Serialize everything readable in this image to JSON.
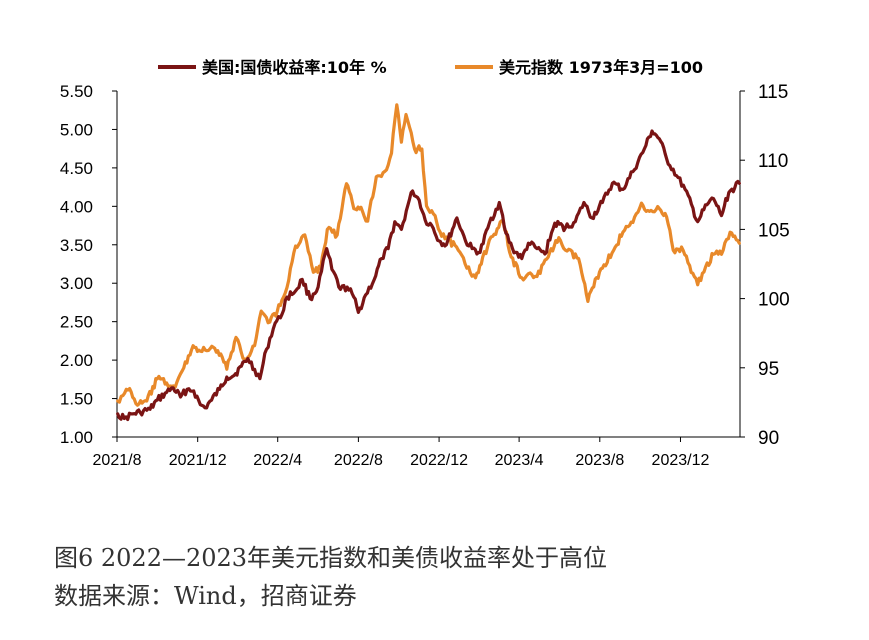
{
  "caption": {
    "figure_title": "图6   2022—2023年美元指数和美债收益率处于高位",
    "source": "数据来源：Wind，招商证券"
  },
  "chart_data": {
    "type": "line",
    "x_range": [
      "2021-08-01",
      "2024-02-29"
    ],
    "x_ticks": [
      {
        "date": "2021-08-01",
        "label": "2021/8"
      },
      {
        "date": "2021-12-01",
        "label": "2021/12"
      },
      {
        "date": "2022-04-01",
        "label": "2022/4"
      },
      {
        "date": "2022-08-01",
        "label": "2022/8"
      },
      {
        "date": "2022-12-01",
        "label": "2022/12"
      },
      {
        "date": "2023-04-01",
        "label": "2023/4"
      },
      {
        "date": "2023-08-01",
        "label": "2023/8"
      },
      {
        "date": "2023-12-01",
        "label": "2023/12"
      }
    ],
    "y_left": {
      "min": 1.0,
      "max": 5.5,
      "ticks": [
        "1.00",
        "1.50",
        "2.00",
        "2.50",
        "3.00",
        "3.50",
        "4.00",
        "4.50",
        "5.00",
        "5.50"
      ]
    },
    "y_right": {
      "min": 90,
      "max": 115,
      "ticks": [
        "90",
        "95",
        "100",
        "105",
        "110",
        "115"
      ]
    },
    "legend_position": "top",
    "grid": false,
    "series": [
      {
        "name": "美国:国债收益率:10年 %",
        "axis": "left",
        "color": "#7a1414",
        "points": [
          [
            "2021-08-02",
            1.3
          ],
          [
            "2021-08-12",
            1.24
          ],
          [
            "2021-08-25",
            1.3
          ],
          [
            "2021-09-05",
            1.32
          ],
          [
            "2021-09-20",
            1.36
          ],
          [
            "2021-10-01",
            1.48
          ],
          [
            "2021-10-15",
            1.58
          ],
          [
            "2021-10-25",
            1.64
          ],
          [
            "2021-11-05",
            1.52
          ],
          [
            "2021-11-15",
            1.62
          ],
          [
            "2021-11-25",
            1.6
          ],
          [
            "2021-12-05",
            1.42
          ],
          [
            "2021-12-12",
            1.38
          ],
          [
            "2021-12-22",
            1.48
          ],
          [
            "2022-01-03",
            1.62
          ],
          [
            "2022-01-14",
            1.78
          ],
          [
            "2022-01-25",
            1.8
          ],
          [
            "2022-02-05",
            1.92
          ],
          [
            "2022-02-15",
            2.02
          ],
          [
            "2022-02-25",
            1.88
          ],
          [
            "2022-03-05",
            1.76
          ],
          [
            "2022-03-15",
            2.14
          ],
          [
            "2022-03-28",
            2.48
          ],
          [
            "2022-04-05",
            2.55
          ],
          [
            "2022-04-15",
            2.82
          ],
          [
            "2022-04-28",
            2.9
          ],
          [
            "2022-05-08",
            3.05
          ],
          [
            "2022-05-20",
            2.8
          ],
          [
            "2022-06-01",
            2.95
          ],
          [
            "2022-06-14",
            3.45
          ],
          [
            "2022-06-22",
            3.18
          ],
          [
            "2022-07-05",
            2.92
          ],
          [
            "2022-07-15",
            2.95
          ],
          [
            "2022-07-25",
            2.82
          ],
          [
            "2022-08-01",
            2.62
          ],
          [
            "2022-08-12",
            2.85
          ],
          [
            "2022-08-25",
            3.05
          ],
          [
            "2022-09-05",
            3.32
          ],
          [
            "2022-09-15",
            3.45
          ],
          [
            "2022-09-25",
            3.8
          ],
          [
            "2022-10-05",
            3.7
          ],
          [
            "2022-10-15",
            4.02
          ],
          [
            "2022-10-22",
            4.2
          ],
          [
            "2022-11-01",
            4.08
          ],
          [
            "2022-11-10",
            3.82
          ],
          [
            "2022-11-20",
            3.75
          ],
          [
            "2022-12-01",
            3.55
          ],
          [
            "2022-12-12",
            3.5
          ],
          [
            "2022-12-28",
            3.85
          ],
          [
            "2023-01-10",
            3.55
          ],
          [
            "2023-01-20",
            3.45
          ],
          [
            "2023-02-01",
            3.4
          ],
          [
            "2023-02-15",
            3.78
          ],
          [
            "2023-03-02",
            4.05
          ],
          [
            "2023-03-12",
            3.65
          ],
          [
            "2023-03-22",
            3.45
          ],
          [
            "2023-04-05",
            3.32
          ],
          [
            "2023-04-15",
            3.52
          ],
          [
            "2023-04-28",
            3.45
          ],
          [
            "2023-05-10",
            3.38
          ],
          [
            "2023-05-25",
            3.78
          ],
          [
            "2023-06-10",
            3.72
          ],
          [
            "2023-06-25",
            3.8
          ],
          [
            "2023-07-08",
            4.05
          ],
          [
            "2023-07-20",
            3.85
          ],
          [
            "2023-08-05",
            4.05
          ],
          [
            "2023-08-20",
            4.3
          ],
          [
            "2023-09-05",
            4.22
          ],
          [
            "2023-09-20",
            4.45
          ],
          [
            "2023-10-05",
            4.7
          ],
          [
            "2023-10-19",
            4.98
          ],
          [
            "2023-10-30",
            4.88
          ],
          [
            "2023-11-10",
            4.62
          ],
          [
            "2023-11-25",
            4.4
          ],
          [
            "2023-12-08",
            4.22
          ],
          [
            "2023-12-27",
            3.8
          ],
          [
            "2024-01-10",
            4.02
          ],
          [
            "2024-01-20",
            4.1
          ],
          [
            "2024-02-01",
            3.88
          ],
          [
            "2024-02-12",
            4.18
          ],
          [
            "2024-02-28",
            4.3
          ]
        ]
      },
      {
        "name": "美元指数 1973年3月=100",
        "axis": "right",
        "color": "#e8892a",
        "points": [
          [
            "2021-08-02",
            92.6
          ],
          [
            "2021-08-10",
            93.0
          ],
          [
            "2021-08-20",
            93.5
          ],
          [
            "2021-09-01",
            92.3
          ],
          [
            "2021-09-15",
            92.6
          ],
          [
            "2021-10-01",
            94.2
          ],
          [
            "2021-10-15",
            93.9
          ],
          [
            "2021-10-28",
            93.6
          ],
          [
            "2021-11-10",
            95.0
          ],
          [
            "2021-11-24",
            96.6
          ],
          [
            "2021-12-05",
            96.2
          ],
          [
            "2021-12-20",
            96.4
          ],
          [
            "2022-01-05",
            96.0
          ],
          [
            "2022-01-14",
            94.9
          ],
          [
            "2022-01-28",
            97.2
          ],
          [
            "2022-02-10",
            95.6
          ],
          [
            "2022-02-25",
            96.6
          ],
          [
            "2022-03-07",
            99.1
          ],
          [
            "2022-03-20",
            98.3
          ],
          [
            "2022-04-05",
            99.5
          ],
          [
            "2022-04-15",
            100.8
          ],
          [
            "2022-04-28",
            103.8
          ],
          [
            "2022-05-12",
            104.6
          ],
          [
            "2022-05-25",
            101.9
          ],
          [
            "2022-06-05",
            102.2
          ],
          [
            "2022-06-15",
            105.0
          ],
          [
            "2022-06-30",
            104.6
          ],
          [
            "2022-07-14",
            108.3
          ],
          [
            "2022-07-25",
            106.5
          ],
          [
            "2022-08-05",
            106.6
          ],
          [
            "2022-08-15",
            105.6
          ],
          [
            "2022-08-28",
            108.8
          ],
          [
            "2022-09-10",
            109.2
          ],
          [
            "2022-09-20",
            110.5
          ],
          [
            "2022-09-28",
            114.0
          ],
          [
            "2022-10-05",
            111.3
          ],
          [
            "2022-10-12",
            113.3
          ],
          [
            "2022-10-25",
            110.8
          ],
          [
            "2022-11-05",
            110.8
          ],
          [
            "2022-11-12",
            106.7
          ],
          [
            "2022-11-25",
            106.0
          ],
          [
            "2022-12-05",
            104.5
          ],
          [
            "2022-12-15",
            104.3
          ],
          [
            "2022-12-30",
            103.5
          ],
          [
            "2023-01-12",
            102.2
          ],
          [
            "2023-01-25",
            101.5
          ],
          [
            "2023-02-05",
            103.0
          ],
          [
            "2023-02-20",
            104.5
          ],
          [
            "2023-03-08",
            105.6
          ],
          [
            "2023-03-20",
            103.0
          ],
          [
            "2023-04-05",
            101.5
          ],
          [
            "2023-04-15",
            101.8
          ],
          [
            "2023-04-28",
            101.6
          ],
          [
            "2023-05-15",
            103.0
          ],
          [
            "2023-05-31",
            104.4
          ],
          [
            "2023-06-10",
            103.5
          ],
          [
            "2023-06-30",
            102.9
          ],
          [
            "2023-07-14",
            99.8
          ],
          [
            "2023-07-25",
            101.4
          ],
          [
            "2023-08-05",
            102.2
          ],
          [
            "2023-08-22",
            103.5
          ],
          [
            "2023-09-05",
            104.8
          ],
          [
            "2023-09-20",
            105.5
          ],
          [
            "2023-10-03",
            106.9
          ],
          [
            "2023-10-15",
            106.3
          ],
          [
            "2023-10-30",
            106.5
          ],
          [
            "2023-11-10",
            105.9
          ],
          [
            "2023-11-20",
            103.5
          ],
          [
            "2023-12-05",
            103.5
          ],
          [
            "2023-12-27",
            101.0
          ],
          [
            "2024-01-08",
            102.3
          ],
          [
            "2024-01-20",
            103.2
          ],
          [
            "2024-02-01",
            103.2
          ],
          [
            "2024-02-14",
            104.8
          ],
          [
            "2024-02-28",
            104.0
          ]
        ]
      }
    ]
  }
}
